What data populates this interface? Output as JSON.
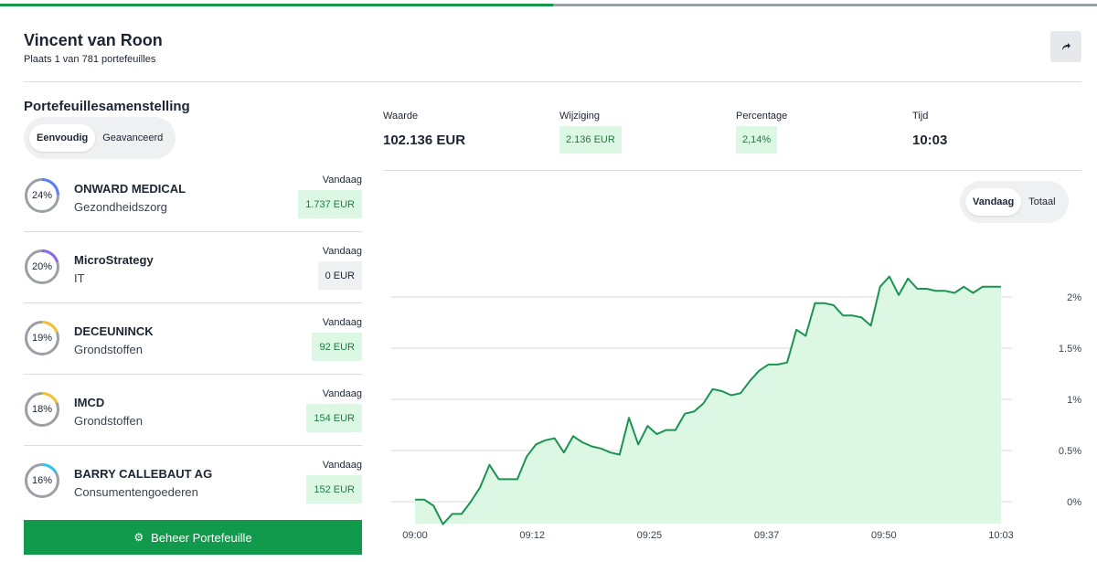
{
  "progress": {
    "fraction": 0.504,
    "fill_color": "#119a4b",
    "track_color": "#9aa0a6"
  },
  "header": {
    "name": "Vincent van Roon",
    "rank_text": "Plaats 1 van 781 portefeuilles",
    "share_icon": "share-arrow-icon"
  },
  "composition": {
    "title": "Portefeuillesamenstelling",
    "toggle": {
      "simple": "Eenvoudig",
      "advanced": "Geavanceerd",
      "active": "simple"
    },
    "today_label": "Vandaag",
    "holdings": [
      {
        "pct": 24,
        "pct_label": "24%",
        "name": "ONWARD MEDICAL",
        "sector": "Gezondheidszorg",
        "today_value": "1.737 EUR",
        "ring_color": "#5b7ff5",
        "value_style": "positive"
      },
      {
        "pct": 20,
        "pct_label": "20%",
        "name": "MicroStrategy",
        "sector": "IT",
        "today_value": "0 EUR",
        "ring_color": "#8c6be8",
        "value_style": "neutral"
      },
      {
        "pct": 19,
        "pct_label": "19%",
        "name": "DECEUNINCK",
        "sector": "Grondstoffen",
        "today_value": "92 EUR",
        "ring_color": "#f2c233",
        "value_style": "positive"
      },
      {
        "pct": 18,
        "pct_label": "18%",
        "name": "IMCD",
        "sector": "Grondstoffen",
        "today_value": "154 EUR",
        "ring_color": "#f2c233",
        "value_style": "positive"
      },
      {
        "pct": 16,
        "pct_label": "16%",
        "name": "BARRY CALLEBAUT AG",
        "sector": "Consumentengoederen",
        "today_value": "152 EUR",
        "ring_color": "#33c6e8",
        "value_style": "positive"
      }
    ],
    "manage_button": "Beheer Portefeuille",
    "manage_icon": "gear-icon"
  },
  "stats": {
    "value_label": "Waarde",
    "value": "102.136 EUR",
    "change_label": "Wijziging",
    "change": "2.136 EUR",
    "percent_label": "Percentage",
    "percent": "2,14%",
    "time_label": "Tijd",
    "time": "10:03"
  },
  "range_toggle": {
    "today": "Vandaag",
    "total": "Totaal",
    "active": "today"
  },
  "colors": {
    "accent": "#119a4b",
    "positive_bg": "#dcf7e4",
    "positive_text": "#1f7a44",
    "neutral_bg": "#eef0f2",
    "chart_line": "#1a9450",
    "chart_fill": "#dcf7e4"
  },
  "chart_data": {
    "type": "area",
    "x_ticks": [
      "09:00",
      "09:12",
      "09:25",
      "09:37",
      "09:50",
      "10:03"
    ],
    "y_ticks": [
      {
        "value": 0,
        "label": "0%"
      },
      {
        "value": 0.5,
        "label": "0.5%"
      },
      {
        "value": 1,
        "label": "1%"
      },
      {
        "value": 1.5,
        "label": "1.5%"
      },
      {
        "value": 2,
        "label": "2%"
      }
    ],
    "x_range_minutes": [
      0,
      63
    ],
    "ylim": [
      -0.22,
      2.2
    ],
    "grid": true,
    "series": [
      {
        "values": [
          0.02,
          0.02,
          -0.04,
          -0.22,
          -0.12,
          -0.12,
          0.0,
          0.14,
          0.36,
          0.22,
          0.22,
          0.22,
          0.44,
          0.56,
          0.6,
          0.62,
          0.48,
          0.64,
          0.58,
          0.54,
          0.52,
          0.48,
          0.46,
          0.82,
          0.56,
          0.74,
          0.66,
          0.7,
          0.7,
          0.86,
          0.88,
          0.96,
          1.1,
          1.08,
          1.04,
          1.06,
          1.18,
          1.28,
          1.34,
          1.34,
          1.36,
          1.68,
          1.62,
          1.94,
          1.94,
          1.92,
          1.82,
          1.82,
          1.8,
          1.72,
          2.1,
          2.2,
          2.02,
          2.18,
          2.08,
          2.08,
          2.06,
          2.06,
          2.04,
          2.1,
          2.04,
          2.1,
          2.1,
          2.1
        ]
      }
    ]
  }
}
